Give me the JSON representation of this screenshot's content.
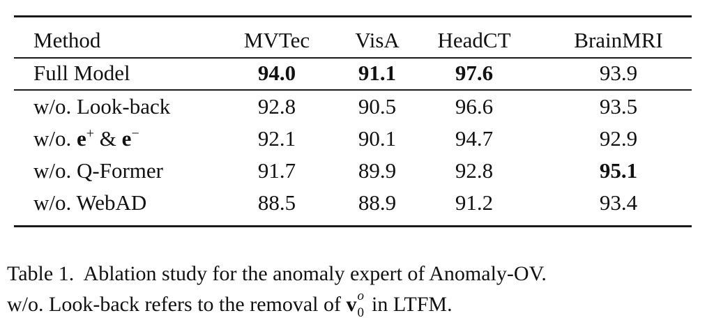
{
  "table": {
    "columns": [
      "Method",
      "MVTec",
      "VisA",
      "HeadCT",
      "BrainMRI"
    ],
    "rows": [
      {
        "method": "Full Model",
        "values": [
          "94.0",
          "91.1",
          "97.6",
          "93.9"
        ],
        "bold": [
          true,
          true,
          true,
          false
        ]
      },
      {
        "method": "w/o. Look-back",
        "values": [
          "92.8",
          "90.5",
          "96.6",
          "93.5"
        ],
        "bold": [
          false,
          false,
          false,
          false
        ]
      },
      {
        "method_prefix": "w/o.",
        "method_math": {
          "a": "e",
          "a_sup": "+",
          "amp": "&",
          "b": "e",
          "b_sup": "−"
        },
        "values": [
          "92.1",
          "90.1",
          "94.7",
          "92.9"
        ],
        "bold": [
          false,
          false,
          false,
          false
        ]
      },
      {
        "method": "w/o. Q-Former",
        "values": [
          "91.7",
          "89.9",
          "92.8",
          "95.1"
        ],
        "bold": [
          false,
          false,
          false,
          true
        ]
      },
      {
        "method": "w/o. WebAD",
        "values": [
          "88.5",
          "88.9",
          "91.2",
          "93.4"
        ],
        "bold": [
          false,
          false,
          false,
          false
        ]
      }
    ]
  },
  "caption": {
    "line1": "Table 1.  Ablation study for the anomaly expert of Anomaly-OV.",
    "line2_before": "w/o. Look-back refers to the removal of ",
    "math_base": "v",
    "math_sup": "o",
    "math_sub": "0",
    "line2_after": " in LTFM."
  }
}
